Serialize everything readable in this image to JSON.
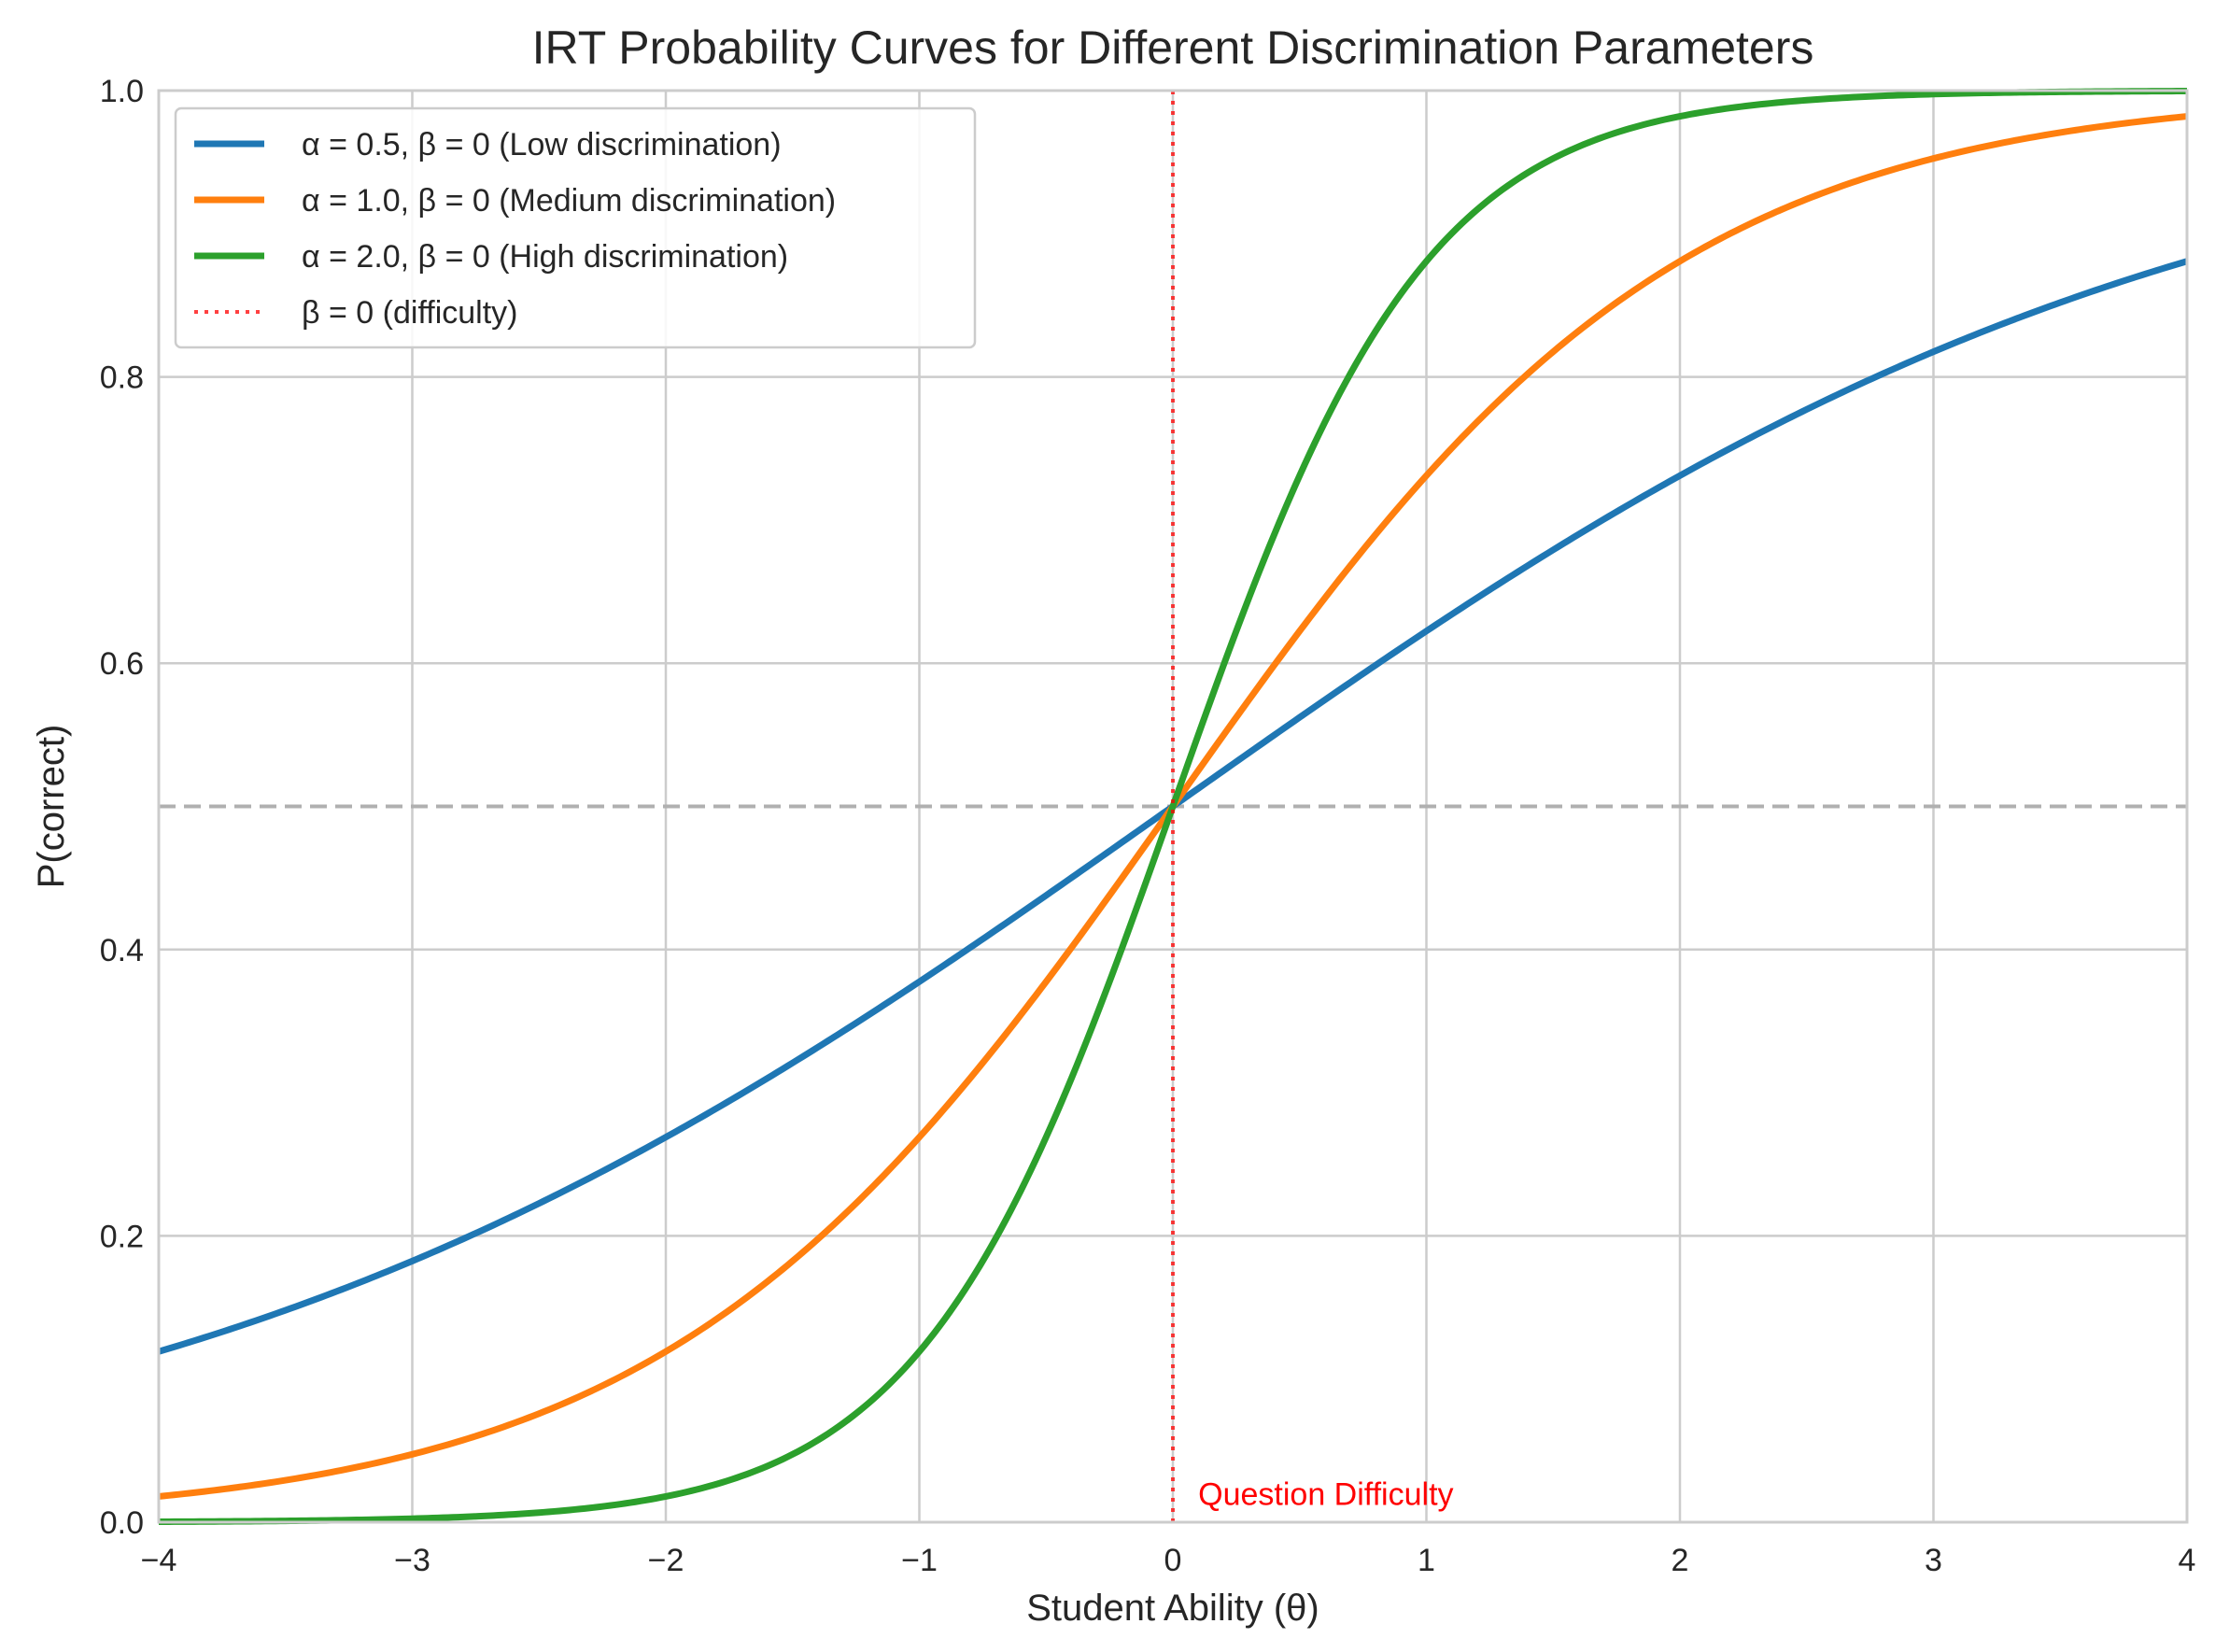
{
  "chart_data": {
    "type": "line",
    "title": "IRT Probability Curves for Different Discrimination Parameters",
    "xlabel": "Student Ability (θ)",
    "ylabel": "P(correct)",
    "xlim": [
      -4,
      4
    ],
    "ylim": [
      0,
      1
    ],
    "xticks": [
      "−4",
      "−3",
      "−2",
      "−1",
      "0",
      "1",
      "2",
      "3",
      "4"
    ],
    "yticks": [
      "0.0",
      "0.2",
      "0.4",
      "0.6",
      "0.8",
      "1.0"
    ],
    "grid": true,
    "legend_position": "top-left",
    "x": [
      -4,
      -3.5,
      -3,
      -2.5,
      -2,
      -1.5,
      -1,
      -0.5,
      0,
      0.5,
      1,
      1.5,
      2,
      2.5,
      3,
      3.5,
      4
    ],
    "series": [
      {
        "name": "α = 0.5, β = 0 (Low discrimination)",
        "color": "#1f77b4",
        "style": "solid",
        "values": [
          0.119,
          0.148,
          0.182,
          0.223,
          0.269,
          0.321,
          0.378,
          0.438,
          0.5,
          0.562,
          0.622,
          0.679,
          0.731,
          0.777,
          0.818,
          0.852,
          0.881
        ]
      },
      {
        "name": "α = 1.0, β = 0 (Medium discrimination)",
        "color": "#ff7f0e",
        "style": "solid",
        "values": [
          0.018,
          0.029,
          0.047,
          0.076,
          0.119,
          0.182,
          0.269,
          0.378,
          0.5,
          0.622,
          0.731,
          0.818,
          0.881,
          0.924,
          0.953,
          0.971,
          0.982
        ]
      },
      {
        "name": "α = 2.0, β = 0 (High discrimination)",
        "color": "#2ca02c",
        "style": "solid",
        "values": [
          0.0003,
          0.0009,
          0.0025,
          0.0067,
          0.018,
          0.047,
          0.119,
          0.269,
          0.5,
          0.731,
          0.881,
          0.953,
          0.982,
          0.993,
          0.998,
          0.999,
          0.9997
        ]
      }
    ],
    "reference_lines": {
      "vertical": {
        "x": 0,
        "label": "β = 0 (difficulty)",
        "color": "#ff0000",
        "style": "dotted"
      },
      "horizontal": {
        "y": 0.5,
        "color": "#b0b0b0",
        "style": "dashed"
      }
    },
    "annotation": {
      "text": "Question Difficulty",
      "x": 0.1,
      "y": 0.02,
      "color": "#ff0000"
    }
  }
}
